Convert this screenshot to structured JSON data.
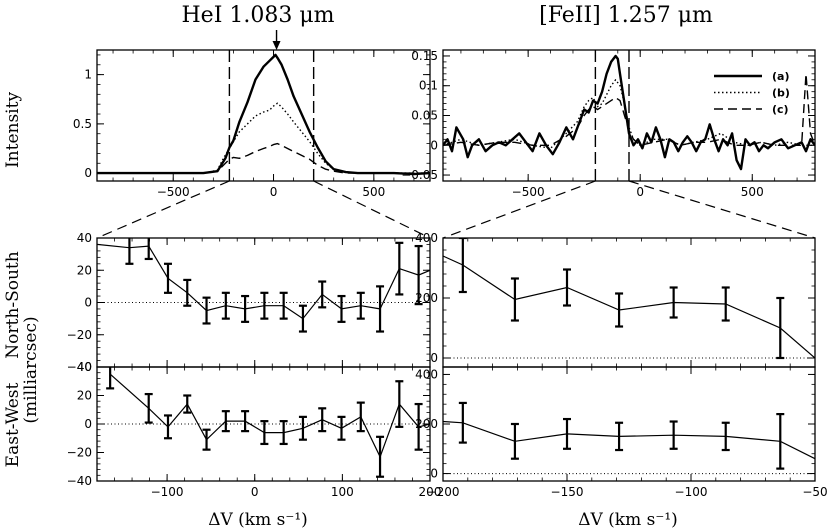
{
  "titles": {
    "left": "HeI 1.083 μm",
    "right": "[FeII] 1.257 μm"
  },
  "labels": {
    "intensity": "Intensity",
    "north_south": "North-South",
    "milliarcsec": "(milliarcsec)",
    "east_west": "East-West",
    "xlabel_left": "ΔV (km s⁻¹)",
    "xlabel_right": "ΔV (km s⁻¹)"
  },
  "legend": [
    "(a)",
    "(b)",
    "(c)"
  ],
  "colors": {
    "ink": "#000000"
  },
  "chart_data": [
    {
      "id": "hei_spectrum",
      "type": "line",
      "xlim": [
        -880,
        780
      ],
      "ylim": [
        -0.08,
        1.25
      ],
      "xticks": [
        -500,
        0,
        500
      ],
      "yticks": [
        0,
        0.5,
        1
      ],
      "ytick_labels": [
        "0",
        "0.5",
        "1"
      ],
      "markers": [
        -220,
        200
      ],
      "arrow_x": 15,
      "series": [
        {
          "name": "(a)",
          "style": "solid",
          "x": [
            -880,
            -500,
            -350,
            -280,
            -240,
            -220,
            -200,
            -170,
            -130,
            -90,
            -50,
            -20,
            0,
            10,
            20,
            40,
            70,
            100,
            140,
            180,
            220,
            260,
            300,
            360,
            420,
            500,
            600,
            700,
            780
          ],
          "y": [
            0,
            0,
            0,
            0.02,
            0.15,
            0.26,
            0.33,
            0.52,
            0.72,
            0.95,
            1.08,
            1.14,
            1.18,
            1.2,
            1.17,
            1.1,
            0.95,
            0.78,
            0.6,
            0.42,
            0.26,
            0.12,
            0.04,
            0.01,
            0,
            0,
            0,
            -0.01,
            0
          ]
        },
        {
          "name": "(b)",
          "style": "dotted",
          "x": [
            -880,
            -500,
            -350,
            -280,
            -250,
            -220,
            -200,
            -170,
            -130,
            -90,
            -50,
            -20,
            0,
            20,
            40,
            70,
            100,
            140,
            180,
            220,
            260,
            300,
            360,
            420,
            500,
            600,
            700,
            780
          ],
          "y": [
            0,
            0,
            0,
            0.03,
            0.15,
            0.25,
            0.32,
            0.42,
            0.5,
            0.58,
            0.62,
            0.64,
            0.68,
            0.71,
            0.67,
            0.6,
            0.52,
            0.42,
            0.32,
            0.2,
            0.1,
            0.04,
            0.01,
            0,
            0,
            0,
            0,
            0
          ]
        },
        {
          "name": "(c)",
          "style": "dashed",
          "x": [
            -880,
            -500,
            -350,
            -280,
            -250,
            -220,
            -200,
            -170,
            -130,
            -90,
            -50,
            -20,
            0,
            20,
            40,
            70,
            100,
            140,
            180,
            220,
            260,
            300,
            360,
            420,
            500,
            600,
            700,
            780
          ],
          "y": [
            0,
            0,
            0,
            0.02,
            0.08,
            0.14,
            0.16,
            0.15,
            0.18,
            0.22,
            0.25,
            0.27,
            0.29,
            0.3,
            0.28,
            0.25,
            0.22,
            0.18,
            0.14,
            0.08,
            0.04,
            0.02,
            0,
            0,
            0,
            0,
            0,
            0
          ]
        }
      ]
    },
    {
      "id": "feii_spectrum",
      "type": "line",
      "xlim": [
        -880,
        780
      ],
      "ylim": [
        -0.06,
        0.16
      ],
      "xticks": [
        -500,
        0,
        500
      ],
      "yticks": [
        -0.05,
        0,
        0.05,
        0.1,
        0.15
      ],
      "ytick_labels": [
        "-0.05",
        "0",
        "0.05",
        "0.1",
        "0.15"
      ],
      "markers": [
        -200,
        -50
      ],
      "legend_position": "top-right",
      "series": [
        {
          "name": "(a)",
          "style": "solid",
          "x": [
            -880,
            -860,
            -840,
            -820,
            -790,
            -770,
            -750,
            -720,
            -690,
            -660,
            -630,
            -600,
            -570,
            -540,
            -510,
            -480,
            -450,
            -420,
            -390,
            -360,
            -330,
            -300,
            -270,
            -250,
            -230,
            -210,
            -190,
            -170,
            -150,
            -130,
            -110,
            -100,
            -90,
            -70,
            -50,
            -30,
            -10,
            10,
            30,
            50,
            70,
            90,
            110,
            130,
            150,
            170,
            190,
            210,
            230,
            250,
            270,
            290,
            310,
            330,
            350,
            370,
            390,
            410,
            430,
            450,
            470,
            490,
            510,
            530,
            550,
            570,
            600,
            630,
            660,
            690,
            720,
            740,
            760,
            780
          ],
          "y": [
            0,
            0.01,
            -0.01,
            0.03,
            0.01,
            -0.02,
            0,
            0.01,
            -0.01,
            0,
            0.005,
            0,
            0.01,
            0.02,
            0.005,
            -0.01,
            0.02,
            0,
            -0.015,
            0.005,
            0.03,
            0.01,
            0.04,
            0.06,
            0.055,
            0.075,
            0.07,
            0.09,
            0.12,
            0.14,
            0.15,
            0.145,
            0.12,
            0.07,
            0.02,
            0,
            0.01,
            -0.005,
            0.02,
            0.005,
            0.03,
            0.01,
            -0.02,
            0.01,
            0.005,
            -0.01,
            0.005,
            0.015,
            0.005,
            -0.01,
            0.005,
            0.01,
            0.035,
            0.01,
            -0.01,
            0.01,
            0,
            0.02,
            -0.025,
            -0.04,
            0.01,
            0,
            0.005,
            -0.01,
            0,
            -0.005,
            0.005,
            0.01,
            -0.005,
            0,
            0.005,
            -0.01,
            0.01,
            0
          ]
        },
        {
          "name": "(b)",
          "style": "dotted",
          "x": [
            -880,
            -800,
            -720,
            -640,
            -560,
            -480,
            -400,
            -330,
            -280,
            -250,
            -230,
            -210,
            -190,
            -170,
            -150,
            -130,
            -110,
            -90,
            -70,
            -50,
            -30,
            0,
            60,
            120,
            180,
            240,
            300,
            360,
            420,
            480,
            540,
            600,
            660,
            720,
            780
          ],
          "y": [
            0,
            0.01,
            0,
            0.005,
            0.01,
            0,
            -0.005,
            0.02,
            0.04,
            0.065,
            0.075,
            0.08,
            0.065,
            0.07,
            0.085,
            0.1,
            0.11,
            0.1,
            0.07,
            0.03,
            0.01,
            0,
            0.01,
            0.01,
            0,
            0.005,
            0.01,
            0.02,
            0.005,
            0,
            0.005,
            0,
            0.005,
            0,
            0
          ]
        },
        {
          "name": "(c)",
          "style": "dashed",
          "x": [
            -880,
            -800,
            -720,
            -640,
            -560,
            -480,
            -400,
            -330,
            -280,
            -250,
            -230,
            -210,
            -190,
            -170,
            -150,
            -130,
            -110,
            -90,
            -70,
            -50,
            -30,
            0,
            60,
            120,
            180,
            240,
            300,
            360,
            420,
            480,
            540,
            600,
            660,
            720,
            740,
            760,
            780
          ],
          "y": [
            0,
            0.005,
            0,
            0.005,
            0.005,
            0,
            0,
            0.015,
            0.03,
            0.05,
            0.06,
            0.065,
            0.06,
            0.065,
            0.07,
            0.075,
            0.08,
            0.075,
            0.05,
            0.025,
            0.01,
            0,
            0.005,
            0.01,
            0,
            0.005,
            0.005,
            0.01,
            0,
            0,
            0.005,
            0,
            0,
            0,
            0.12,
            0.02,
            0
          ]
        }
      ]
    },
    {
      "id": "hei_north_south",
      "type": "line",
      "xlim": [
        -180,
        200
      ],
      "ylim": [
        -40,
        40
      ],
      "xticks": [
        -100,
        0,
        100,
        200
      ],
      "yticks": [
        -40,
        -20,
        0,
        20,
        40
      ],
      "zero_line": true,
      "x": [
        -143,
        -121,
        -99,
        -77,
        -55,
        -33,
        -11,
        11,
        33,
        55,
        77,
        99,
        121,
        143,
        165,
        187
      ],
      "y": [
        34,
        35,
        15,
        6,
        -5,
        -2,
        -4,
        -2,
        -2,
        -10,
        5,
        -4,
        -2,
        -4,
        21,
        17
      ],
      "err": [
        10,
        8,
        9,
        8,
        8,
        8,
        8,
        8,
        8,
        8,
        8,
        8,
        8,
        14,
        16,
        18
      ],
      "line_start": [
        -180,
        36
      ],
      "line_end": [
        200,
        20
      ]
    },
    {
      "id": "hei_east_west",
      "type": "line",
      "xlim": [
        -180,
        200
      ],
      "ylim": [
        -40,
        40
      ],
      "xticks": [
        -100,
        0,
        100,
        200
      ],
      "xtick_labels": [
        "-100",
        "0",
        "100",
        "200"
      ],
      "yticks": [
        -40,
        -20,
        0,
        20,
        40
      ],
      "zero_line": true,
      "x": [
        -165,
        -121,
        -99,
        -77,
        -55,
        -33,
        -11,
        11,
        33,
        55,
        77,
        99,
        121,
        143,
        165,
        187
      ],
      "y": [
        35,
        11,
        -2,
        14,
        -11,
        2,
        2,
        -6,
        -6,
        -3,
        3,
        -3,
        5,
        -23,
        14,
        -2
      ],
      "err": [
        10,
        10,
        8,
        6,
        7,
        7,
        7,
        8,
        8,
        8,
        8,
        8,
        10,
        14,
        16,
        16
      ],
      "line_end": [
        200,
        0
      ]
    },
    {
      "id": "feii_north_south",
      "type": "line",
      "xlim": [
        -200,
        -50
      ],
      "ylim": [
        -30,
        400
      ],
      "xticks": [
        -200,
        -150,
        -100,
        -50
      ],
      "yticks": [
        0,
        200,
        400
      ],
      "zero_line": true,
      "x": [
        -192,
        -171,
        -150,
        -129,
        -107,
        -86,
        -64
      ],
      "y": [
        310,
        195,
        235,
        160,
        185,
        180,
        100
      ],
      "err": [
        90,
        70,
        60,
        55,
        50,
        55,
        100
      ],
      "line_start": [
        -200,
        340
      ],
      "line_end": [
        -50,
        0
      ]
    },
    {
      "id": "feii_east_west",
      "type": "line",
      "xlim": [
        -200,
        -50
      ],
      "ylim": [
        -30,
        430
      ],
      "xticks": [
        -200,
        -150,
        -100,
        -50
      ],
      "xtick_labels": [
        "-200",
        "-150",
        "-100",
        "-50"
      ],
      "yticks": [
        0,
        200,
        400
      ],
      "zero_line": true,
      "x": [
        -192,
        -171,
        -150,
        -129,
        -107,
        -86,
        -64
      ],
      "y": [
        205,
        130,
        160,
        150,
        155,
        150,
        130
      ],
      "err": [
        80,
        70,
        60,
        55,
        55,
        55,
        110
      ],
      "line_start": [
        -200,
        210
      ],
      "line_end": [
        -50,
        60
      ]
    }
  ]
}
